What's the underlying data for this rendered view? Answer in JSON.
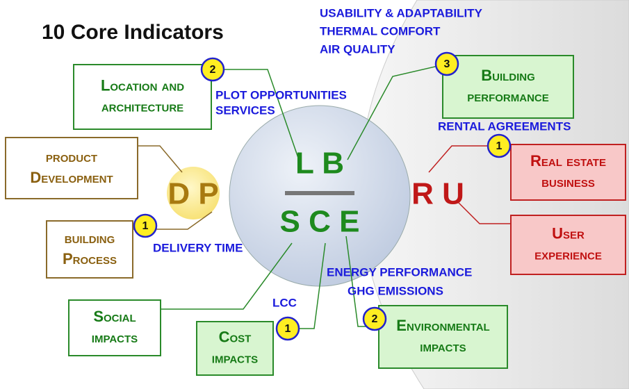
{
  "title": "10 Core Indicators",
  "center": {
    "top": "L B",
    "bottom": "S C E"
  },
  "left_circle": "D P",
  "right_letters": "R U",
  "boxes": [
    {
      "lines": [
        "Location and",
        "architecture"
      ],
      "badge": 2,
      "notes": [
        "PLOT OPPORTUNITIES",
        "SERVICES"
      ]
    },
    {
      "lines": [
        "Building",
        "performance"
      ],
      "badge": 3,
      "notes": [
        "USABILITY & ADAPTABILITY",
        "THERMAL COMFORT",
        "AIR QUALITY"
      ]
    },
    {
      "lines": [
        "product",
        "Development"
      ]
    },
    {
      "lines": [
        "building",
        "Process"
      ],
      "badge": 1,
      "notes": [
        "DELIVERY TIME"
      ]
    },
    {
      "lines": [
        "Real estate",
        "business"
      ],
      "badge": 1,
      "notes": [
        "RENTAL AGREEMENTS"
      ]
    },
    {
      "lines": [
        "User",
        "experience"
      ]
    },
    {
      "lines": [
        "Social",
        "impacts"
      ]
    },
    {
      "lines": [
        "Cost",
        "impacts"
      ],
      "badge": 1,
      "notes": [
        "LCC"
      ]
    },
    {
      "lines": [
        "Environmental",
        "impacts"
      ],
      "badge": 2,
      "notes": [
        "ENERGY PERFORMANCE",
        "GHG EMISSIONS"
      ]
    }
  ]
}
